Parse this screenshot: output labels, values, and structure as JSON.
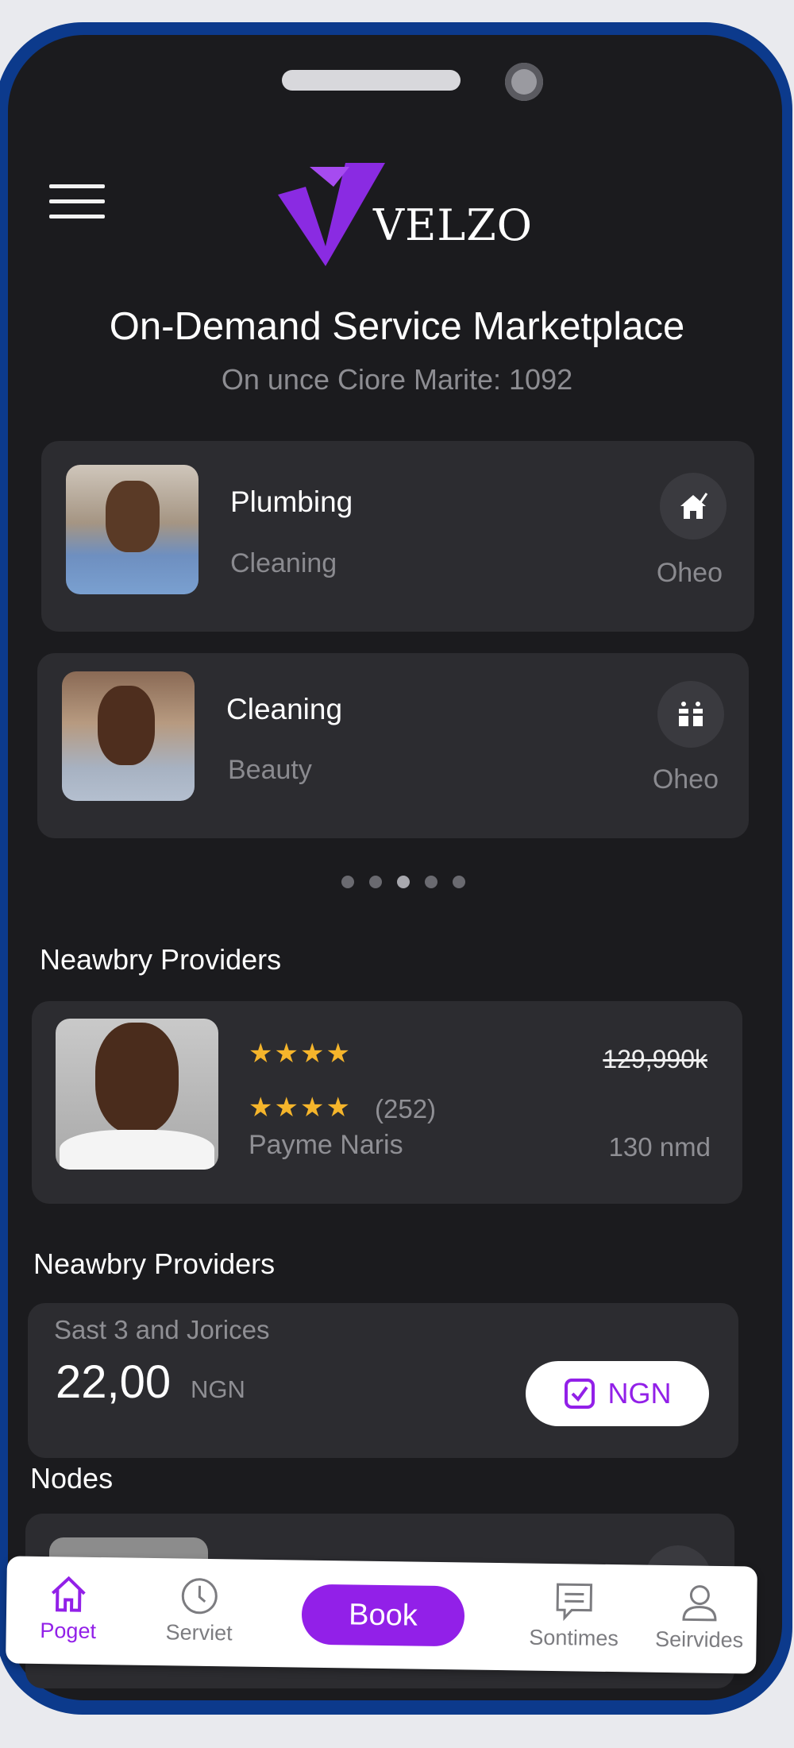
{
  "header": {
    "brand": "VELZO",
    "menu_icon": "hamburger-icon"
  },
  "hero": {
    "title": "On-Demand Service Marketplace",
    "subtitle": "On unce Ciore Marite: 1092"
  },
  "services": [
    {
      "title": "Plumbing",
      "subtitle": "Cleaning",
      "meta": "Oheo",
      "icon": "house-check-icon"
    },
    {
      "title": "Cleaning",
      "subtitle": "Beauty",
      "meta": "Oheo",
      "icon": "cleaning-bottles-icon"
    }
  ],
  "carousel": {
    "count": 5,
    "active_index": 2
  },
  "providers_section": {
    "title": "Neawbry Providers",
    "provider": {
      "rating_stars": "★★★★",
      "rating": 3.5,
      "reviews": "(252)",
      "name": "Payme Naris",
      "price": "129,990k",
      "distance": "130 nmd"
    }
  },
  "pricing_section": {
    "title": "Neawbry Providers",
    "label": "Sast 3 and Jorices",
    "amount": "22,00",
    "currency": "NGN",
    "button_label": "NGN"
  },
  "nodes_section": {
    "title": "Nodes"
  },
  "bottom_nav": {
    "items": [
      {
        "label": "Poget",
        "icon": "home-icon",
        "active": true
      },
      {
        "label": "Serviet",
        "icon": "clock-icon"
      },
      {
        "label": "Sontimes",
        "icon": "chat-icon"
      },
      {
        "label": "Seirvides",
        "icon": "person-icon"
      }
    ],
    "book_label": "Book"
  },
  "colors": {
    "accent": "#9220e8",
    "background": "#1b1b1e",
    "card": "#2c2c30",
    "star": "#f5b52b",
    "frame": "#0c3a8c"
  }
}
